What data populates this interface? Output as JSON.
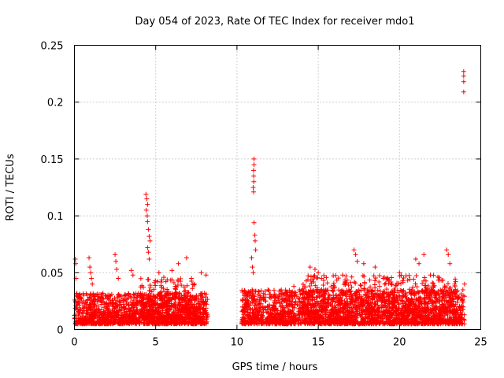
{
  "chart_data": {
    "type": "scatter",
    "title": "Day 054 of 2023, Rate Of TEC Index for receiver mdo1",
    "xlabel": "GPS time / hours",
    "ylabel": "ROTI / TECUs",
    "xlim": [
      0,
      25
    ],
    "ylim": [
      0,
      0.25
    ],
    "xticks": [
      0,
      5,
      10,
      15,
      20,
      25
    ],
    "xtick_labels": [
      "0",
      "5",
      "10",
      "15",
      "20",
      "25"
    ],
    "yticks": [
      0,
      0.05,
      0.1,
      0.15,
      0.2,
      0.25
    ],
    "ytick_labels": [
      "0",
      "0.05",
      "0.1",
      "0.15",
      "0.2",
      "0.25"
    ],
    "grid": true,
    "marker": "+",
    "series": [
      {
        "name": "ROTI",
        "color": "#ff0000",
        "points": [
          [
            0.05,
            0.062
          ],
          [
            0.08,
            0.058
          ],
          [
            0.1,
            0.045
          ],
          [
            0.15,
            0.03
          ],
          [
            0.2,
            0.022
          ],
          [
            0.9,
            0.063
          ],
          [
            0.95,
            0.055
          ],
          [
            1.0,
            0.05
          ],
          [
            1.05,
            0.045
          ],
          [
            1.1,
            0.04
          ],
          [
            2.5,
            0.066
          ],
          [
            2.55,
            0.06
          ],
          [
            2.6,
            0.053
          ],
          [
            2.7,
            0.045
          ],
          [
            3.5,
            0.052
          ],
          [
            3.6,
            0.048
          ],
          [
            4.4,
            0.119
          ],
          [
            4.45,
            0.115
          ],
          [
            4.5,
            0.11
          ],
          [
            4.42,
            0.105
          ],
          [
            4.48,
            0.1
          ],
          [
            4.5,
            0.095
          ],
          [
            4.55,
            0.088
          ],
          [
            4.6,
            0.082
          ],
          [
            4.65,
            0.078
          ],
          [
            4.5,
            0.072
          ],
          [
            4.55,
            0.068
          ],
          [
            4.6,
            0.062
          ],
          [
            5.2,
            0.05
          ],
          [
            5.5,
            0.046
          ],
          [
            6.0,
            0.052
          ],
          [
            6.4,
            0.058
          ],
          [
            6.9,
            0.063
          ],
          [
            7.2,
            0.045
          ],
          [
            7.8,
            0.05
          ],
          [
            8.1,
            0.048
          ],
          [
            10.9,
            0.063
          ],
          [
            10.95,
            0.055
          ],
          [
            11.0,
            0.05
          ],
          [
            11.05,
            0.15
          ],
          [
            11.05,
            0.145
          ],
          [
            11.02,
            0.14
          ],
          [
            11.03,
            0.135
          ],
          [
            11.04,
            0.13
          ],
          [
            11.0,
            0.125
          ],
          [
            11.02,
            0.121
          ],
          [
            11.05,
            0.094
          ],
          [
            11.1,
            0.083
          ],
          [
            11.12,
            0.078
          ],
          [
            11.15,
            0.07
          ],
          [
            13.5,
            0.038
          ],
          [
            14.5,
            0.055
          ],
          [
            14.8,
            0.053
          ],
          [
            15.0,
            0.05
          ],
          [
            15.2,
            0.045
          ],
          [
            16.5,
            0.048
          ],
          [
            17.2,
            0.07
          ],
          [
            17.3,
            0.066
          ],
          [
            17.4,
            0.06
          ],
          [
            17.8,
            0.058
          ],
          [
            18.5,
            0.055
          ],
          [
            19.0,
            0.045
          ],
          [
            19.5,
            0.04
          ],
          [
            20.0,
            0.05
          ],
          [
            20.2,
            0.043
          ],
          [
            21.0,
            0.062
          ],
          [
            21.2,
            0.058
          ],
          [
            21.5,
            0.066
          ],
          [
            21.9,
            0.048
          ],
          [
            22.9,
            0.07
          ],
          [
            23.0,
            0.066
          ],
          [
            23.1,
            0.058
          ],
          [
            23.4,
            0.04
          ],
          [
            23.95,
            0.227
          ],
          [
            23.95,
            0.223
          ],
          [
            23.95,
            0.218
          ],
          [
            23.95,
            0.209
          ],
          [
            24.0,
            0.04
          ],
          [
            23.9,
            0.035
          ]
        ],
        "dense_bands": [
          {
            "x": [
              0.0,
              8.2
            ],
            "y_min": 0.005,
            "y_max": 0.032,
            "count": 1400
          },
          {
            "x": [
              10.3,
              24.0
            ],
            "y_min": 0.005,
            "y_max": 0.035,
            "count": 2400
          },
          {
            "x": [
              4.0,
              7.5
            ],
            "y_min": 0.01,
            "y_max": 0.045,
            "count": 300
          },
          {
            "x": [
              14.0,
              23.5
            ],
            "y_min": 0.015,
            "y_max": 0.048,
            "count": 500
          }
        ]
      }
    ]
  }
}
